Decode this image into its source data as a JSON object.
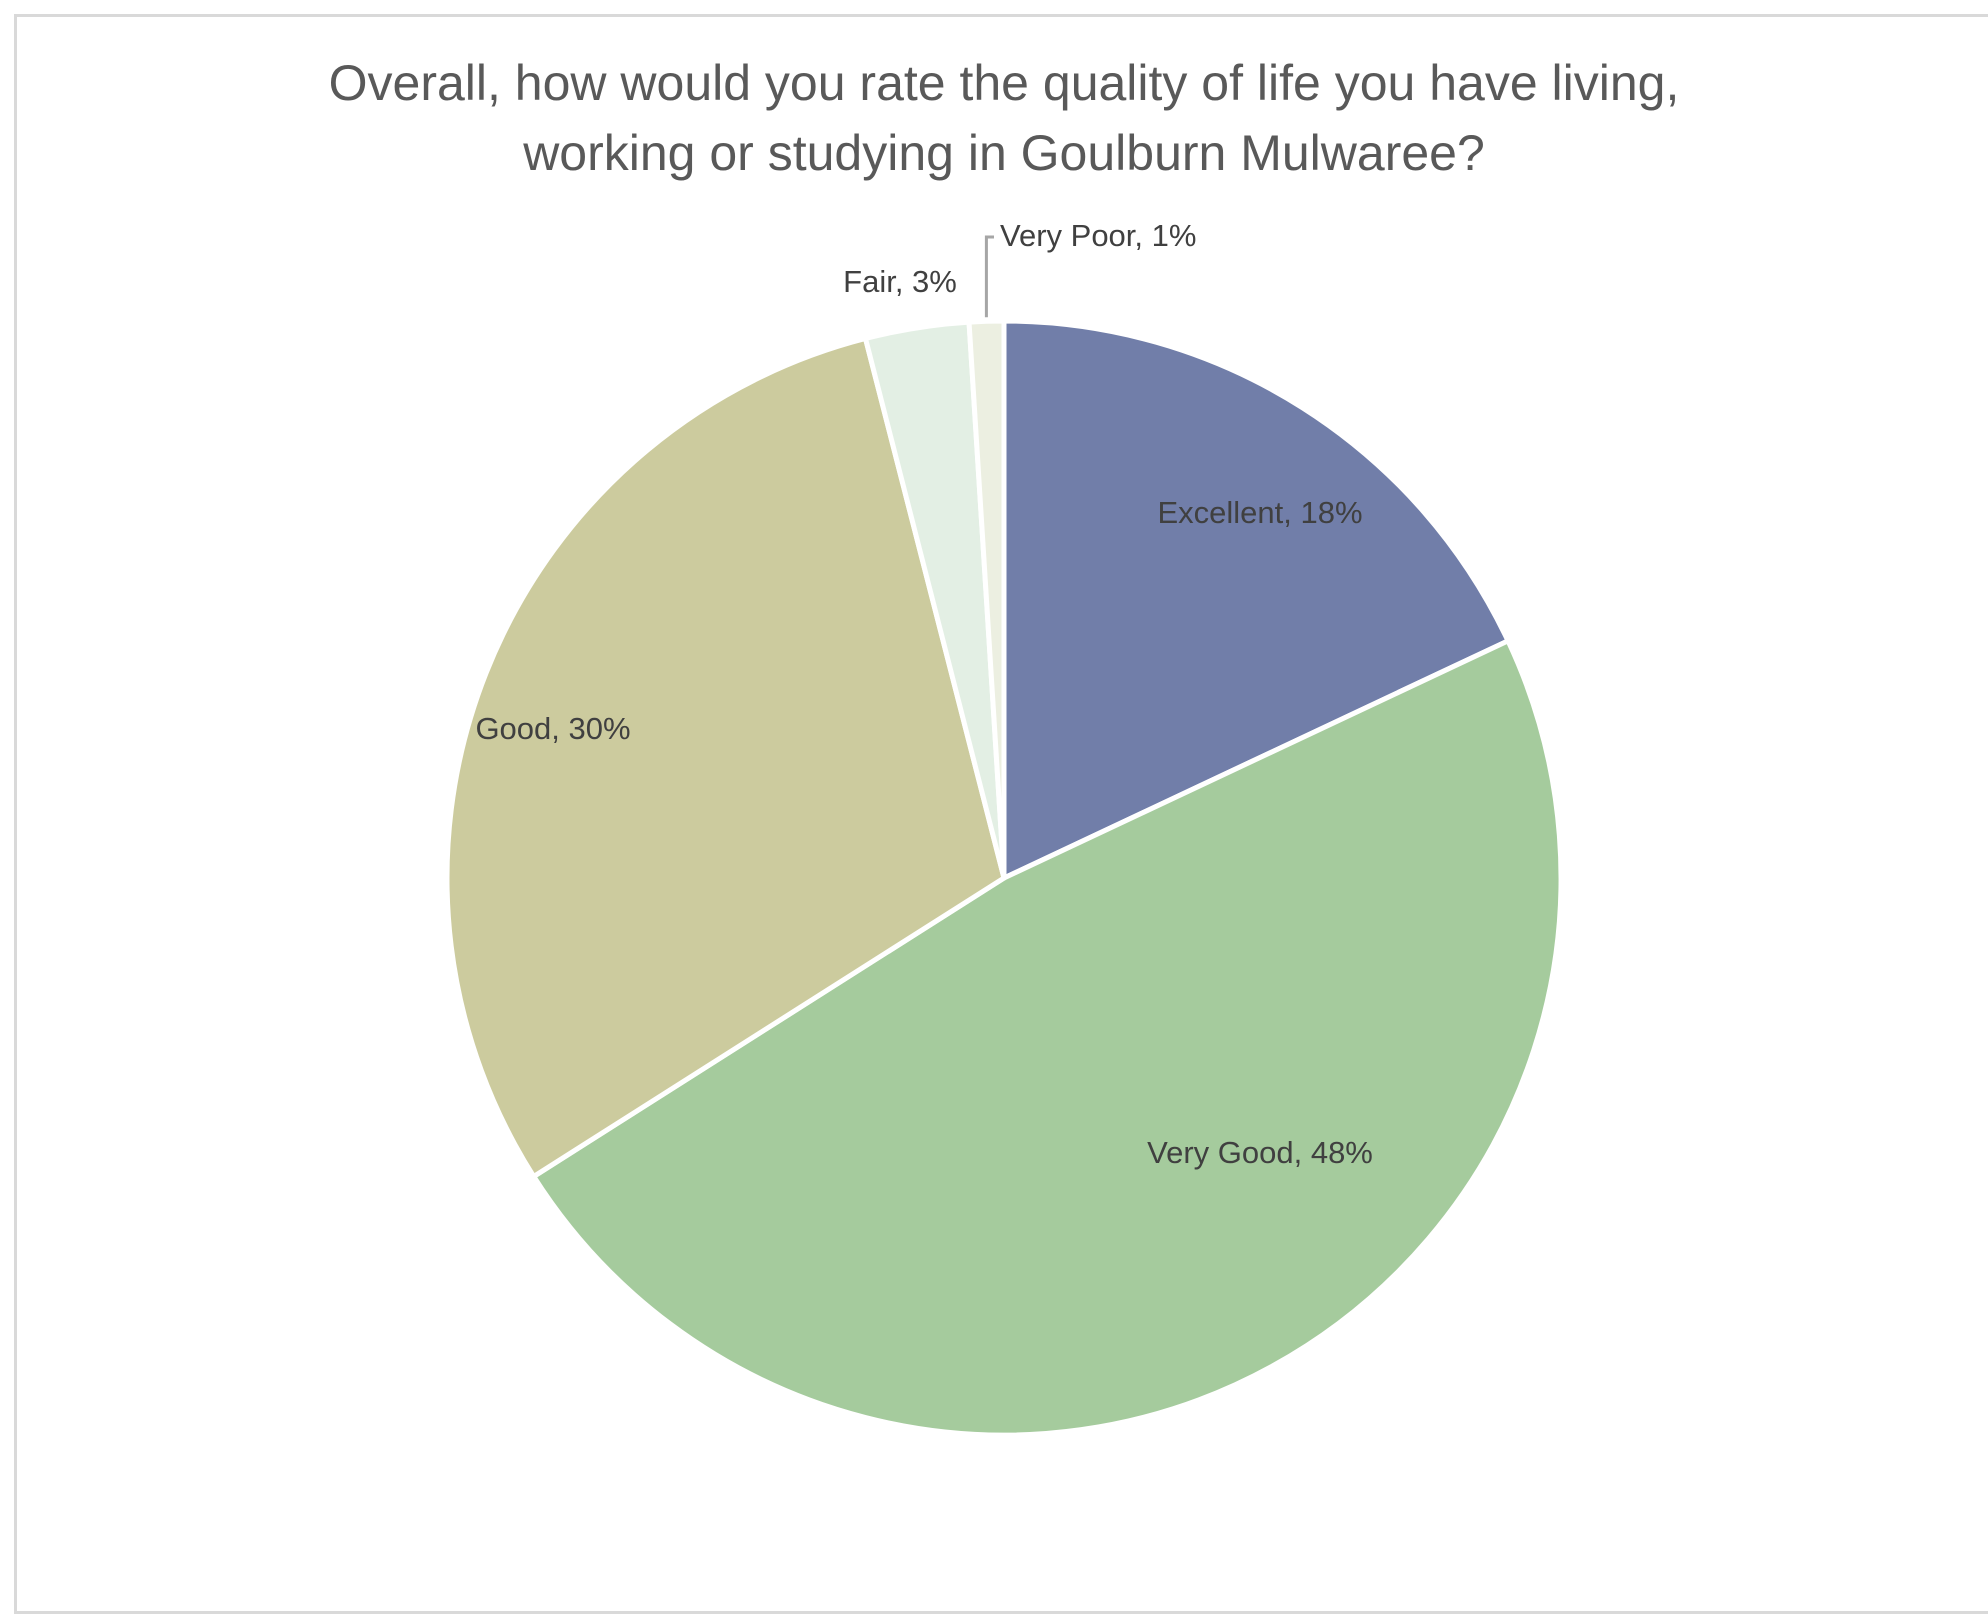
{
  "chart_data": {
    "type": "pie",
    "title_lines": [
      "Overall, how would you rate the quality of life you have living,",
      "working or studying in Goulburn Mulwaree?"
    ],
    "slices": [
      {
        "category": "Excellent",
        "value": 18,
        "label": "Excellent, 18%",
        "color": "#717ea9"
      },
      {
        "category": "Very Good",
        "value": 48,
        "label": "Very Good, 48%",
        "color": "#a5cb9d"
      },
      {
        "category": "Good",
        "value": 30,
        "label": "Good, 30%",
        "color": "#cccb9e"
      },
      {
        "category": "Fair",
        "value": 3,
        "label": "Fair, 3%",
        "color": "#e3efe4"
      },
      {
        "category": "Very Poor",
        "value": 1,
        "label": "Very Poor, 1%",
        "color": "#ecefe1"
      }
    ],
    "start_angle": "12 o'clock",
    "direction": "clockwise",
    "legend": "none",
    "slice_border_color": "#ffffff"
  }
}
